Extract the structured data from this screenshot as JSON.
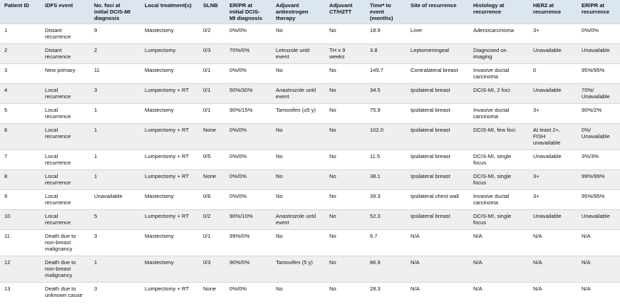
{
  "table": {
    "headers": [
      "Patient ID",
      "iDFS event",
      "No. foci at initial DCIS-MI diagnosis",
      "Local treatment(s)",
      "SLNB",
      "ER/PR at initial DCIS-MI diagnosis",
      "Adjuvant antiestrogen therapy",
      "Adjuvant CT/H2TT",
      "Timeᵃ to event (months)",
      "Site of recurrence",
      "Histology at recurrence",
      "HER2 at recurrence",
      "ER/PR at recurrence"
    ],
    "rows": [
      [
        "1",
        "Distant recurrence",
        "9",
        "Mastectomy",
        "0/2",
        "0%/0%",
        "No",
        "No",
        "18.9",
        "Liver",
        "Adenocarcinoma",
        "3+",
        "0%/0%"
      ],
      [
        "2",
        "Distant recurrence",
        "2",
        "Lumpectomy",
        "0/3",
        "70%/0%",
        "Letrozole until event",
        "TH x 9 weeks",
        "3.8",
        "Leptomeningeal",
        "Diagnosed on imaging",
        "Unavailable",
        "Unavailable"
      ],
      [
        "3",
        "New primary",
        "11",
        "Mastectomy",
        "0/1",
        "0%/0%",
        "No",
        "No",
        "145.7",
        "Contralateral breast",
        "Invasive ductal carcinoma",
        "0",
        "95%/95%"
      ],
      [
        "4",
        "Local recurrence",
        "3",
        "Lumpectomy + RT",
        "0/1",
        "50%/30%",
        "Anastrozole until event",
        "No",
        "34.5",
        "Ipsilateral breast",
        "DCIS-MI, 2 foci",
        "Unavailable",
        "70%/ Unavailable"
      ],
      [
        "5",
        "Local recurrence",
        "1",
        "Mastectomy",
        "0/1",
        "90%/15%",
        "Tamoxifen (≥5 y)",
        "No",
        "75.9",
        "Ipsilateral breast",
        "Invasive ductal carcinoma",
        "3+",
        "90%/2%"
      ],
      [
        "6",
        "Local recurrence",
        "1",
        "Lumpectomy + RT",
        "None",
        "0%/0%",
        "No",
        "No",
        "102.0",
        "Ipsilateral breast",
        "DCIS-MI, few foci",
        "At least 2+, FISH unavailable",
        "0%/ Unavailable"
      ],
      [
        "7",
        "Local recurrence",
        "1",
        "Lumpectomy + RT",
        "0/5",
        "0%/0%",
        "No",
        "No",
        "11.5",
        "Ipsilateral breast",
        "DCIS-MI, single focus",
        "Unavailable",
        "3%/3%"
      ],
      [
        "8",
        "Local recurrence",
        "1",
        "Lumpectomy + RT",
        "None",
        "0%/0%",
        "No",
        "No",
        "38.1",
        "Ipsilateral breast",
        "DCIS-MI, single focus",
        "3+",
        "99%/99%"
      ],
      [
        "9",
        "Local recurrence",
        "Unavailable",
        "Mastectomy",
        "0/6",
        "0%/0%",
        "No",
        "No",
        "39.3",
        "Ipsilateral chest wall",
        "Invasive ductal carcinoma",
        "3+",
        "95%/95%"
      ],
      [
        "10",
        "Local recurrence",
        "5",
        "Lumpectomy + RT",
        "0/2",
        "90%/10%",
        "Anastrozole until event",
        "No",
        "52.3",
        "Ipsilateral breast",
        "DCIS-MI, single focus",
        "Unavailable",
        "Unavailable"
      ],
      [
        "11",
        "Death due to non-breast malignancy",
        "3",
        "Mastectomy",
        "0/1",
        "99%/0%",
        "No",
        "No",
        "6.7",
        "N/A",
        "N/A",
        "N/A",
        "N/A"
      ],
      [
        "12",
        "Death due to non-breast malignancy",
        "1",
        "Mastectomy",
        "0/3",
        "90%/0%",
        "Tamoxifen (5 y)",
        "No",
        "86.9",
        "N/A",
        "N/A",
        "N/A",
        "N/A"
      ],
      [
        "13",
        "Death due to unknown cause",
        "3",
        "Lumpectomy + RT",
        "None",
        "0%/0%",
        "No",
        "No",
        "28.3",
        "N/A",
        "N/A",
        "N/A",
        "N/A"
      ]
    ]
  }
}
